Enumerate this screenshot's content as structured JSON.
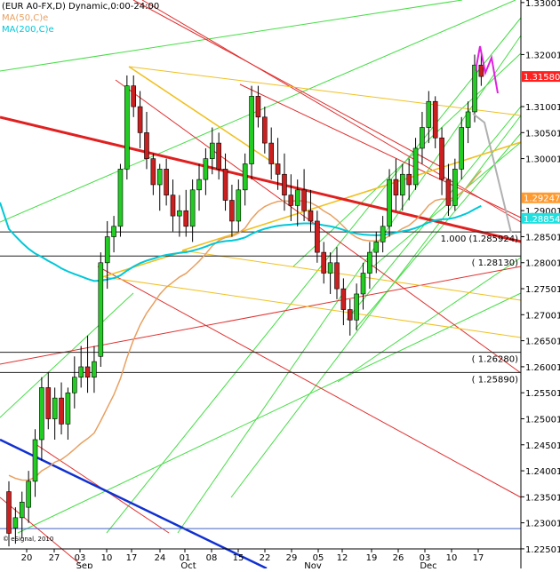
{
  "chart_data": {
    "type": "candlestick",
    "title": "(EUR A0-FX,D) Dynamic,0:00-24:00",
    "legend": [
      {
        "label": "MA(50,C)e",
        "color": "#e8a060"
      },
      {
        "label": "MA(200,C)e",
        "color": "#00c8d8"
      }
    ],
    "price_labels": [
      {
        "value": 1.3158,
        "text": "1.31580",
        "bg": "#ff2020",
        "fg": "#ffffff"
      },
      {
        "value": 1.292474,
        "text": "1.292474",
        "bg": "#ff9a30",
        "fg": "#ffffff"
      },
      {
        "value": 1.288543,
        "text": "1.288543",
        "bg": "#20e0e0",
        "fg": "#ffffff"
      }
    ],
    "horizontal_levels": [
      {
        "value": 1.28592,
        "text": "1.000 (1.285924)"
      },
      {
        "value": 1.2813,
        "text": "( 1.28130)"
      },
      {
        "value": 1.2628,
        "text": "( 1.26280)"
      },
      {
        "value": 1.2589,
        "text": "( 1.25890)"
      },
      {
        "value": 1.2289,
        "text": "",
        "color": "#4060c0"
      }
    ],
    "y_ticks": [
      "1.330013",
      "1.320013",
      "1.310013",
      "1.305013",
      "1.300013",
      "1.290013",
      "1.285013",
      "1.280013",
      "1.275013",
      "1.270013",
      "1.265013",
      "1.260013",
      "1.255013",
      "1.250013",
      "1.245013",
      "1.240013",
      "1.235013",
      "1.230013",
      "1.225013"
    ],
    "ylim": [
      1.225,
      1.3305
    ],
    "x_ticks": [
      "20",
      "27",
      "03",
      "10",
      "17",
      "24",
      "01",
      "08",
      "15",
      "22",
      "29",
      "05",
      "12",
      "19",
      "26",
      "03",
      "10",
      "17"
    ],
    "x_months": [
      "Sep",
      "Oct",
      "Nov",
      "Dec"
    ],
    "watermark": "",
    "copyright": "© eSignal, 2010",
    "candles": [
      {
        "o": 1.236,
        "h": 1.238,
        "l": 1.2255,
        "c": 1.228
      },
      {
        "o": 1.229,
        "h": 1.233,
        "l": 1.226,
        "c": 1.231
      },
      {
        "o": 1.231,
        "h": 1.236,
        "l": 1.227,
        "c": 1.234
      },
      {
        "o": 1.233,
        "h": 1.24,
        "l": 1.23,
        "c": 1.238
      },
      {
        "o": 1.238,
        "h": 1.248,
        "l": 1.235,
        "c": 1.246
      },
      {
        "o": 1.246,
        "h": 1.258,
        "l": 1.242,
        "c": 1.256
      },
      {
        "o": 1.256,
        "h": 1.259,
        "l": 1.248,
        "c": 1.25
      },
      {
        "o": 1.25,
        "h": 1.256,
        "l": 1.246,
        "c": 1.254
      },
      {
        "o": 1.254,
        "h": 1.257,
        "l": 1.247,
        "c": 1.249
      },
      {
        "o": 1.249,
        "h": 1.256,
        "l": 1.246,
        "c": 1.255
      },
      {
        "o": 1.255,
        "h": 1.262,
        "l": 1.252,
        "c": 1.258
      },
      {
        "o": 1.258,
        "h": 1.264,
        "l": 1.256,
        "c": 1.26
      },
      {
        "o": 1.26,
        "h": 1.266,
        "l": 1.255,
        "c": 1.258
      },
      {
        "o": 1.258,
        "h": 1.264,
        "l": 1.255,
        "c": 1.261
      },
      {
        "o": 1.262,
        "h": 1.282,
        "l": 1.26,
        "c": 1.28
      },
      {
        "o": 1.28,
        "h": 1.288,
        "l": 1.275,
        "c": 1.285
      },
      {
        "o": 1.285,
        "h": 1.289,
        "l": 1.282,
        "c": 1.287
      },
      {
        "o": 1.287,
        "h": 1.299,
        "l": 1.285,
        "c": 1.298
      },
      {
        "o": 1.298,
        "h": 1.316,
        "l": 1.296,
        "c": 1.314
      },
      {
        "o": 1.314,
        "h": 1.316,
        "l": 1.308,
        "c": 1.31
      },
      {
        "o": 1.31,
        "h": 1.313,
        "l": 1.302,
        "c": 1.305
      },
      {
        "o": 1.305,
        "h": 1.309,
        "l": 1.298,
        "c": 1.3
      },
      {
        "o": 1.3,
        "h": 1.301,
        "l": 1.293,
        "c": 1.295
      },
      {
        "o": 1.295,
        "h": 1.299,
        "l": 1.29,
        "c": 1.298
      },
      {
        "o": 1.298,
        "h": 1.3,
        "l": 1.291,
        "c": 1.293
      },
      {
        "o": 1.293,
        "h": 1.296,
        "l": 1.286,
        "c": 1.289
      },
      {
        "o": 1.289,
        "h": 1.293,
        "l": 1.285,
        "c": 1.29
      },
      {
        "o": 1.29,
        "h": 1.294,
        "l": 1.285,
        "c": 1.287
      },
      {
        "o": 1.287,
        "h": 1.296,
        "l": 1.284,
        "c": 1.294
      },
      {
        "o": 1.294,
        "h": 1.299,
        "l": 1.29,
        "c": 1.296
      },
      {
        "o": 1.296,
        "h": 1.302,
        "l": 1.293,
        "c": 1.3
      },
      {
        "o": 1.3,
        "h": 1.306,
        "l": 1.297,
        "c": 1.303
      },
      {
        "o": 1.303,
        "h": 1.305,
        "l": 1.296,
        "c": 1.298
      },
      {
        "o": 1.298,
        "h": 1.301,
        "l": 1.29,
        "c": 1.292
      },
      {
        "o": 1.292,
        "h": 1.295,
        "l": 1.285,
        "c": 1.288
      },
      {
        "o": 1.288,
        "h": 1.296,
        "l": 1.286,
        "c": 1.294
      },
      {
        "o": 1.294,
        "h": 1.301,
        "l": 1.291,
        "c": 1.299
      },
      {
        "o": 1.299,
        "h": 1.314,
        "l": 1.296,
        "c": 1.312
      },
      {
        "o": 1.312,
        "h": 1.314,
        "l": 1.306,
        "c": 1.308
      },
      {
        "o": 1.308,
        "h": 1.31,
        "l": 1.301,
        "c": 1.303
      },
      {
        "o": 1.303,
        "h": 1.306,
        "l": 1.296,
        "c": 1.299
      },
      {
        "o": 1.299,
        "h": 1.304,
        "l": 1.294,
        "c": 1.297
      },
      {
        "o": 1.297,
        "h": 1.301,
        "l": 1.29,
        "c": 1.293
      },
      {
        "o": 1.293,
        "h": 1.297,
        "l": 1.288,
        "c": 1.291
      },
      {
        "o": 1.291,
        "h": 1.296,
        "l": 1.287,
        "c": 1.294
      },
      {
        "o": 1.294,
        "h": 1.298,
        "l": 1.288,
        "c": 1.29
      },
      {
        "o": 1.29,
        "h": 1.294,
        "l": 1.286,
        "c": 1.288
      },
      {
        "o": 1.288,
        "h": 1.29,
        "l": 1.28,
        "c": 1.282
      },
      {
        "o": 1.282,
        "h": 1.284,
        "l": 1.276,
        "c": 1.278
      },
      {
        "o": 1.278,
        "h": 1.282,
        "l": 1.274,
        "c": 1.28
      },
      {
        "o": 1.28,
        "h": 1.283,
        "l": 1.273,
        "c": 1.275
      },
      {
        "o": 1.275,
        "h": 1.277,
        "l": 1.268,
        "c": 1.271
      },
      {
        "o": 1.271,
        "h": 1.273,
        "l": 1.266,
        "c": 1.269
      },
      {
        "o": 1.269,
        "h": 1.276,
        "l": 1.267,
        "c": 1.274
      },
      {
        "o": 1.274,
        "h": 1.28,
        "l": 1.271,
        "c": 1.278
      },
      {
        "o": 1.278,
        "h": 1.284,
        "l": 1.275,
        "c": 1.282
      },
      {
        "o": 1.282,
        "h": 1.286,
        "l": 1.278,
        "c": 1.284
      },
      {
        "o": 1.284,
        "h": 1.289,
        "l": 1.282,
        "c": 1.287
      },
      {
        "o": 1.287,
        "h": 1.298,
        "l": 1.285,
        "c": 1.296
      },
      {
        "o": 1.296,
        "h": 1.3,
        "l": 1.29,
        "c": 1.293
      },
      {
        "o": 1.293,
        "h": 1.299,
        "l": 1.29,
        "c": 1.297
      },
      {
        "o": 1.297,
        "h": 1.3,
        "l": 1.292,
        "c": 1.295
      },
      {
        "o": 1.295,
        "h": 1.304,
        "l": 1.294,
        "c": 1.302
      },
      {
        "o": 1.302,
        "h": 1.309,
        "l": 1.299,
        "c": 1.306
      },
      {
        "o": 1.306,
        "h": 1.313,
        "l": 1.303,
        "c": 1.311
      },
      {
        "o": 1.311,
        "h": 1.312,
        "l": 1.302,
        "c": 1.304
      },
      {
        "o": 1.304,
        "h": 1.306,
        "l": 1.293,
        "c": 1.296
      },
      {
        "o": 1.296,
        "h": 1.299,
        "l": 1.289,
        "c": 1.291
      },
      {
        "o": 1.291,
        "h": 1.3,
        "l": 1.29,
        "c": 1.298
      },
      {
        "o": 1.298,
        "h": 1.308,
        "l": 1.296,
        "c": 1.306
      },
      {
        "o": 1.306,
        "h": 1.311,
        "l": 1.303,
        "c": 1.309
      },
      {
        "o": 1.309,
        "h": 1.32,
        "l": 1.307,
        "c": 1.318
      },
      {
        "o": 1.318,
        "h": 1.32,
        "l": 1.314,
        "c": 1.3158
      }
    ]
  }
}
